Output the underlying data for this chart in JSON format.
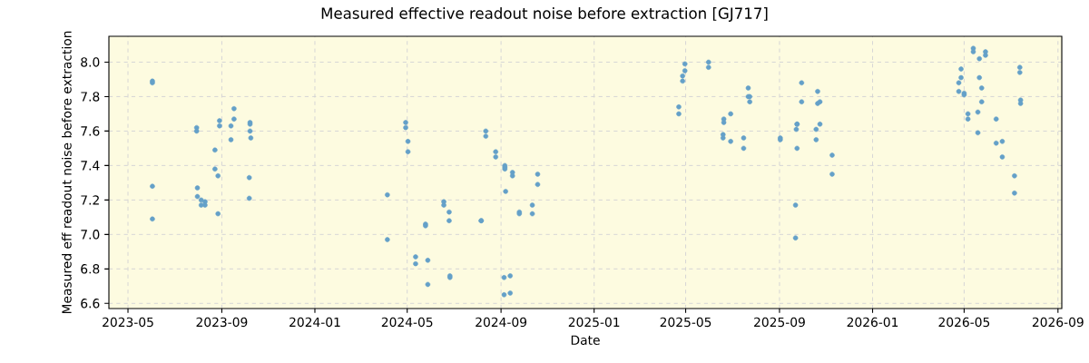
{
  "chart_data": {
    "type": "scatter",
    "title": "Measured effective readout noise before extraction [GJ717]",
    "xlabel": "Date",
    "ylabel": "Measured eff readout noise before extraction",
    "x": [
      "2023-06-02",
      "2023-06-02",
      "2023-06-02",
      "2023-06-02",
      "2023-07-30",
      "2023-07-30",
      "2023-07-31",
      "2023-07-31",
      "2023-08-05",
      "2023-08-05",
      "2023-08-10",
      "2023-08-10",
      "2023-08-23",
      "2023-08-23",
      "2023-08-27",
      "2023-08-27",
      "2023-08-29",
      "2023-08-29",
      "2023-09-13",
      "2023-09-13",
      "2023-09-17",
      "2023-09-17",
      "2023-10-07",
      "2023-10-07",
      "2023-10-08",
      "2023-10-08",
      "2023-10-08",
      "2023-10-09",
      "2024-04-05",
      "2024-04-05",
      "2024-04-29",
      "2024-04-29",
      "2024-05-02",
      "2024-05-02",
      "2024-05-12",
      "2024-05-12",
      "2024-05-25",
      "2024-05-25",
      "2024-05-28",
      "2024-05-28",
      "2024-06-18",
      "2024-06-18",
      "2024-06-25",
      "2024-06-25",
      "2024-06-26",
      "2024-06-26",
      "2024-08-06",
      "2024-08-06",
      "2024-08-12",
      "2024-08-12",
      "2024-08-25",
      "2024-08-25",
      "2024-09-05",
      "2024-09-05",
      "2024-09-06",
      "2024-09-06",
      "2024-09-06",
      "2024-09-07",
      "2024-09-13",
      "2024-09-13",
      "2024-09-16",
      "2024-09-16",
      "2024-09-25",
      "2024-09-25",
      "2024-10-12",
      "2024-10-12",
      "2024-10-19",
      "2024-10-19",
      "2025-04-22",
      "2025-04-22",
      "2025-04-27",
      "2025-04-27",
      "2025-04-30",
      "2025-04-30",
      "2025-05-31",
      "2025-05-31",
      "2025-06-19",
      "2025-06-19",
      "2025-06-20",
      "2025-06-20",
      "2025-06-29",
      "2025-06-29",
      "2025-07-16",
      "2025-07-16",
      "2025-07-22",
      "2025-07-22",
      "2025-07-24",
      "2025-07-24",
      "2025-09-02",
      "2025-09-02",
      "2025-09-22",
      "2025-09-22",
      "2025-09-23",
      "2025-09-24",
      "2025-09-24",
      "2025-09-24",
      "2025-09-30",
      "2025-09-30",
      "2025-10-19",
      "2025-10-19",
      "2025-10-21",
      "2025-10-21",
      "2025-10-24",
      "2025-10-24",
      "2025-11-09",
      "2025-11-09",
      "2026-04-24",
      "2026-04-24",
      "2026-04-27",
      "2026-04-27",
      "2026-05-01",
      "2026-05-01",
      "2026-05-06",
      "2026-05-06",
      "2026-05-13",
      "2026-05-13",
      "2026-05-19",
      "2026-05-19",
      "2026-05-21",
      "2026-05-21",
      "2026-05-24",
      "2026-05-24",
      "2026-05-29",
      "2026-05-29",
      "2026-06-12",
      "2026-06-12",
      "2026-06-20",
      "2026-06-20",
      "2026-07-06",
      "2026-07-06",
      "2026-07-13",
      "2026-07-13",
      "2026-07-14",
      "2026-07-14"
    ],
    "values": [
      7.89,
      7.88,
      7.28,
      7.09,
      7.62,
      7.6,
      7.27,
      7.22,
      7.2,
      7.17,
      7.19,
      7.17,
      7.49,
      7.38,
      7.34,
      7.12,
      7.66,
      7.63,
      7.63,
      7.55,
      7.73,
      7.67,
      7.33,
      7.21,
      7.65,
      7.64,
      7.6,
      7.56,
      7.23,
      6.97,
      7.65,
      7.62,
      7.54,
      7.48,
      6.87,
      6.83,
      7.06,
      7.05,
      6.85,
      6.71,
      7.19,
      7.17,
      7.13,
      7.08,
      6.76,
      6.75,
      7.08,
      7.08,
      7.6,
      7.57,
      7.48,
      7.45,
      6.75,
      6.65,
      7.4,
      7.39,
      7.38,
      7.25,
      6.76,
      6.66,
      7.36,
      7.34,
      7.13,
      7.12,
      7.17,
      7.12,
      7.35,
      7.29,
      7.74,
      7.7,
      7.92,
      7.89,
      7.99,
      7.95,
      8.0,
      7.97,
      7.58,
      7.56,
      7.67,
      7.65,
      7.7,
      7.54,
      7.56,
      7.5,
      7.85,
      7.8,
      7.8,
      7.77,
      7.56,
      7.55,
      7.17,
      6.98,
      7.61,
      7.64,
      7.64,
      7.5,
      7.88,
      7.77,
      7.61,
      7.55,
      7.83,
      7.76,
      7.77,
      7.64,
      7.46,
      7.35,
      7.88,
      7.83,
      7.96,
      7.91,
      7.82,
      7.81,
      7.7,
      7.67,
      8.08,
      8.06,
      7.71,
      7.59,
      8.02,
      7.91,
      7.85,
      7.77,
      8.06,
      8.04,
      7.67,
      7.53,
      7.54,
      7.45,
      7.34,
      7.24,
      7.97,
      7.94,
      7.78,
      7.76
    ],
    "color": "#64a0c8",
    "marker": "circle",
    "grid": true,
    "xlim": [
      "2023-04-06",
      "2026-09-06"
    ],
    "xticks": [
      "2023-05",
      "2023-09",
      "2024-01",
      "2024-05",
      "2024-09",
      "2025-01",
      "2025-05",
      "2025-09",
      "2026-01",
      "2026-05",
      "2026-09"
    ],
    "ylim": [
      6.57,
      8.15
    ],
    "yticks": [
      6.6,
      6.8,
      {
        "value": 7,
        "label": "7.0"
      },
      7.2,
      7.4,
      7.6,
      7.8,
      {
        "value": 8,
        "label": "8.0"
      }
    ]
  }
}
